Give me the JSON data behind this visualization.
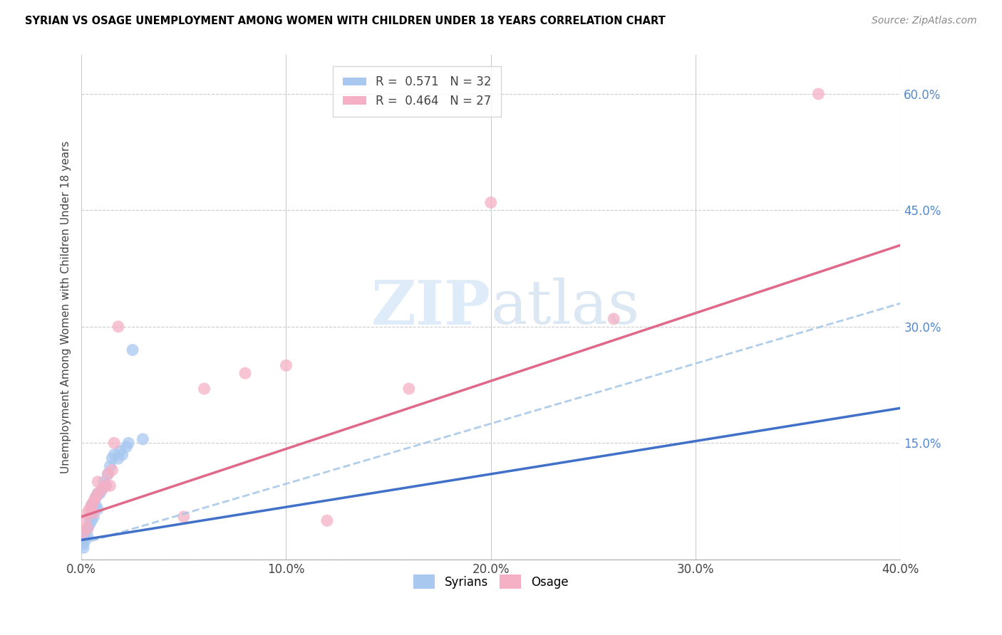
{
  "title": "SYRIAN VS OSAGE UNEMPLOYMENT AMONG WOMEN WITH CHILDREN UNDER 18 YEARS CORRELATION CHART",
  "source": "Source: ZipAtlas.com",
  "ylabel": "Unemployment Among Women with Children Under 18 years",
  "xlim": [
    0.0,
    0.4
  ],
  "ylim": [
    0.0,
    0.65
  ],
  "xticks": [
    0.0,
    0.1,
    0.2,
    0.3,
    0.4
  ],
  "xtick_labels": [
    "0.0%",
    "10.0%",
    "20.0%",
    "30.0%",
    "40.0%"
  ],
  "yticks_right": [
    0.0,
    0.15,
    0.3,
    0.45,
    0.6
  ],
  "ytick_right_labels": [
    "",
    "15.0%",
    "30.0%",
    "45.0%",
    "60.0%"
  ],
  "R_syrian": 0.571,
  "N_syrian": 32,
  "R_osage": 0.464,
  "N_osage": 27,
  "syrian_color": "#a8c8f0",
  "osage_color": "#f5b0c5",
  "syrian_line_color": "#4070c8",
  "osage_line_color": "#e06888",
  "dashed_line_color": "#a8c8e8",
  "watermark_color": "#d5e8f8",
  "syrian_x": [
    0.001,
    0.001,
    0.002,
    0.002,
    0.003,
    0.003,
    0.004,
    0.004,
    0.005,
    0.005,
    0.005,
    0.006,
    0.006,
    0.007,
    0.007,
    0.008,
    0.008,
    0.009,
    0.01,
    0.011,
    0.012,
    0.013,
    0.014,
    0.015,
    0.016,
    0.018,
    0.019,
    0.02,
    0.022,
    0.023,
    0.025,
    0.03
  ],
  "syrian_y": [
    0.015,
    0.02,
    0.025,
    0.035,
    0.03,
    0.04,
    0.045,
    0.055,
    0.05,
    0.06,
    0.07,
    0.055,
    0.065,
    0.07,
    0.08,
    0.065,
    0.085,
    0.085,
    0.09,
    0.1,
    0.095,
    0.11,
    0.12,
    0.13,
    0.135,
    0.13,
    0.14,
    0.135,
    0.145,
    0.15,
    0.27,
    0.155
  ],
  "osage_x": [
    0.001,
    0.002,
    0.003,
    0.003,
    0.004,
    0.005,
    0.006,
    0.006,
    0.007,
    0.008,
    0.008,
    0.01,
    0.012,
    0.013,
    0.014,
    0.015,
    0.016,
    0.018,
    0.05,
    0.06,
    0.08,
    0.1,
    0.12,
    0.16,
    0.2,
    0.26,
    0.36
  ],
  "osage_y": [
    0.035,
    0.05,
    0.04,
    0.06,
    0.065,
    0.07,
    0.06,
    0.075,
    0.08,
    0.085,
    0.1,
    0.09,
    0.095,
    0.11,
    0.095,
    0.115,
    0.15,
    0.3,
    0.055,
    0.22,
    0.24,
    0.25,
    0.05,
    0.22,
    0.46,
    0.31,
    0.6
  ],
  "syrian_trend_x": [
    0.0,
    0.4
  ],
  "syrian_trend_y": [
    0.025,
    0.195
  ],
  "osage_trend_x": [
    0.0,
    0.4
  ],
  "osage_trend_y": [
    0.055,
    0.405
  ],
  "dashed_trend_x": [
    0.0,
    0.4
  ],
  "dashed_trend_y": [
    0.02,
    0.33
  ]
}
